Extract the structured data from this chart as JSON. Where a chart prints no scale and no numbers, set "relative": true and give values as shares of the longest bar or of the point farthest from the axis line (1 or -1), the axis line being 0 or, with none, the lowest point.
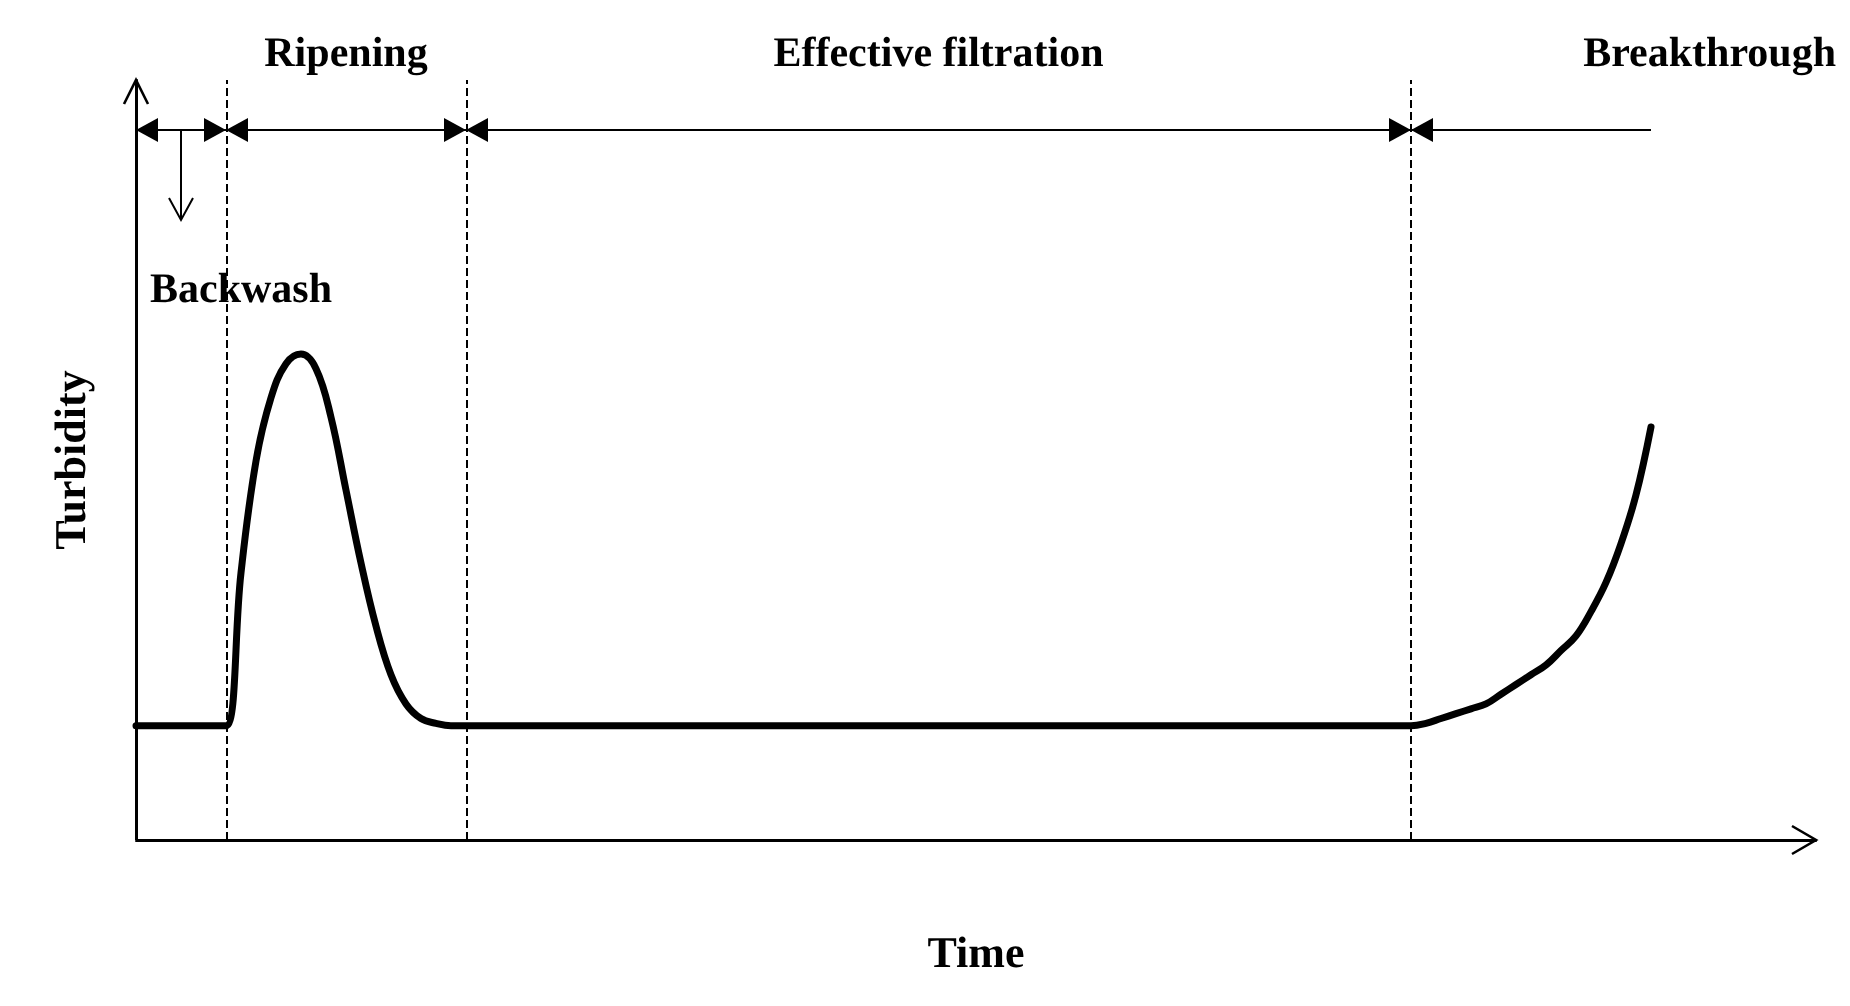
{
  "chart_data": {
    "type": "line",
    "relative": true,
    "xlabel": "Time",
    "ylabel": "Turbidity",
    "annotations": [
      "Backwash",
      "Ripening",
      "Effective filtration",
      "Breakthrough"
    ],
    "categories": [
      null,
      null,
      null,
      null,
      null,
      null,
      null,
      null,
      null,
      null,
      null,
      null,
      null,
      null,
      null,
      null,
      null,
      null,
      null,
      null,
      null,
      null,
      null,
      null,
      null,
      null,
      null,
      null,
      null,
      null,
      null,
      null,
      null,
      null,
      null,
      null,
      null,
      null,
      null,
      null,
      null,
      null,
      null,
      null,
      null,
      null,
      null,
      null,
      null,
      null,
      null,
      null,
      null,
      null,
      null,
      null,
      null,
      null,
      null,
      null,
      null,
      null,
      null,
      null,
      null,
      null,
      null,
      null,
      null,
      null,
      null,
      null,
      null,
      null,
      null,
      null,
      null,
      null,
      null,
      null,
      null,
      null,
      null,
      null,
      null,
      null,
      null,
      null,
      null,
      null,
      null,
      null,
      null,
      null,
      null,
      null,
      null,
      null,
      null,
      null,
      null,
      null,
      null,
      null,
      null,
      null,
      null,
      null,
      null,
      null,
      null,
      null,
      null
    ],
    "series": [
      {
        "color": "#000000",
        "values": [
          0.235,
          0.235,
          0.235,
          0.235,
          0.235,
          0.235,
          0.235,
          0.55,
          0.78,
          0.91,
          0.98,
          1,
          0.97,
          0.87,
          0.72,
          0.57,
          0.44,
          0.34,
          0.28,
          0.25,
          0.24,
          0.235,
          0.235,
          0.235,
          0.235,
          0.235,
          0.235,
          0.235,
          0.235,
          0.235,
          0.235,
          0.235,
          0.235,
          0.235,
          0.235,
          0.235,
          0.235,
          0.235,
          0.235,
          0.235,
          0.235,
          0.235,
          0.235,
          0.235,
          0.235,
          0.235,
          0.235,
          0.235,
          0.235,
          0.235,
          0.235,
          0.235,
          0.235,
          0.235,
          0.235,
          0.235,
          0.235,
          0.235,
          0.235,
          0.235,
          0.235,
          0.235,
          0.235,
          0.235,
          0.235,
          0.235,
          0.235,
          0.235,
          0.235,
          0.235,
          0.235,
          0.235,
          0.235,
          0.235,
          0.235,
          0.235,
          0.235,
          0.235,
          0.235,
          0.235,
          0.235,
          0.235,
          0.235,
          0.235,
          0.235,
          0.235,
          0.24,
          0.25,
          0.26,
          0.27,
          0.28,
          0.3,
          0.32,
          0.34,
          0.36,
          0.39,
          0.42,
          0.47,
          0.53,
          0.61,
          0.71,
          0.85,
          null,
          null,
          null,
          null,
          null,
          null,
          null,
          null,
          null,
          null,
          null
        ]
      }
    ],
    "ref_lines": [
      {
        "axis": "x",
        "color": "#000000",
        "line_style": "dashed"
      },
      {
        "axis": "x",
        "color": "#000000",
        "line_style": "dashed"
      },
      {
        "axis": "x",
        "color": "#000000",
        "line_style": "dashed"
      }
    ],
    "marker": "none",
    "line_style": "solid"
  }
}
